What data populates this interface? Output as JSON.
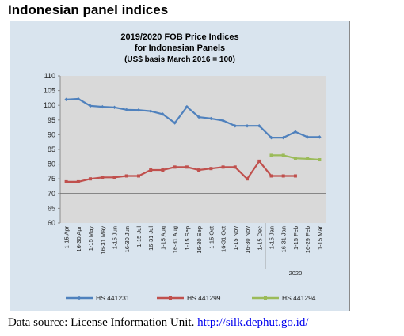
{
  "page": {
    "heading": "Indonesian panel indices",
    "source_prefix": "Data source: License Information Unit. ",
    "source_link": "http://silk.dephut.go.id/"
  },
  "chart_data": {
    "type": "line",
    "title_lines": [
      "2019/2020 FOB Price Indices",
      "for Indonesian Panels",
      "(US$ basis March 2016 = 100)"
    ],
    "xlabel": "",
    "ylabel": "",
    "ylim": [
      60,
      110
    ],
    "yticks": [
      60,
      65,
      70,
      75,
      80,
      85,
      90,
      95,
      100,
      105,
      110
    ],
    "reference_line": 70,
    "categories": [
      "1-15 Apr",
      "16-30 Apr",
      "1-15 May",
      "16-31 May",
      "1-15 Jun",
      "16-30 Jun",
      "1-15 Jul",
      "16-31 Jul",
      "1-15 Aug",
      "16-31 Aug",
      "1-15 Sep",
      "16-30 Sep",
      "1-15 Oct",
      "16-31 Oct",
      "1-15 Nov",
      "16-30 Nov",
      "1-15 Dec",
      "1-15 Jan",
      "16-31 Jan",
      "1-15 Feb",
      "16-29 Feb",
      "1-15 Mar"
    ],
    "group_label": "2020",
    "group_start_index": 17,
    "grid": false,
    "legend_position": "bottom",
    "series": [
      {
        "name": "HS 441231",
        "color": "#4f81bd",
        "values": [
          102,
          102.2,
          99.8,
          99.5,
          99.3,
          98.5,
          98.4,
          98,
          97,
          94,
          99.5,
          96,
          95.5,
          94.8,
          93,
          93,
          93,
          89,
          89,
          91,
          89.2,
          89.2
        ]
      },
      {
        "name": "HS 441299",
        "color": "#c0504d",
        "values": [
          74,
          74,
          75,
          75.5,
          75.5,
          76,
          76,
          78,
          78,
          79,
          79,
          78,
          78.5,
          79,
          79,
          75,
          81,
          76,
          76,
          76,
          null,
          null
        ]
      },
      {
        "name": "HS 441294",
        "color": "#9bbb59",
        "values": [
          null,
          null,
          null,
          null,
          null,
          null,
          null,
          null,
          null,
          null,
          null,
          null,
          null,
          null,
          null,
          null,
          null,
          83,
          83,
          82,
          81.8,
          81.5
        ]
      }
    ]
  }
}
